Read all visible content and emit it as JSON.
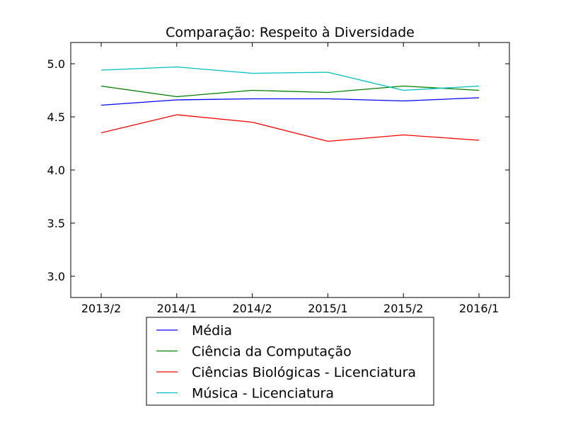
{
  "chart_data": {
    "type": "line",
    "title": "Comparação: Respeito à Diversidade",
    "xlabel": "",
    "ylabel": "",
    "categories": [
      "2013/2",
      "2014/1",
      "2014/2",
      "2015/1",
      "2015/2",
      "2016/1"
    ],
    "ylim": [
      2.8,
      5.2
    ],
    "yticks": [
      3.0,
      3.5,
      4.0,
      4.5,
      5.0
    ],
    "ytick_labels": [
      "3.0",
      "3.5",
      "4.0",
      "4.5",
      "5.0"
    ],
    "grid": false,
    "legend_position": "bottom-center-outside",
    "series": [
      {
        "name": "Média",
        "color": "#0000ff",
        "values": [
          4.61,
          4.66,
          4.67,
          4.67,
          4.65,
          4.68
        ]
      },
      {
        "name": "Ciência da Computação",
        "color": "#008000",
        "values": [
          4.79,
          4.69,
          4.75,
          4.73,
          4.79,
          4.75
        ]
      },
      {
        "name": "Ciências Biológicas - Licenciatura",
        "color": "#ff0000",
        "values": [
          4.35,
          4.52,
          4.45,
          4.27,
          4.33,
          4.28
        ]
      },
      {
        "name": "Música - Licenciatura",
        "color": "#00bfbf",
        "values": [
          4.94,
          4.97,
          4.91,
          4.92,
          4.75,
          4.79
        ]
      }
    ]
  }
}
